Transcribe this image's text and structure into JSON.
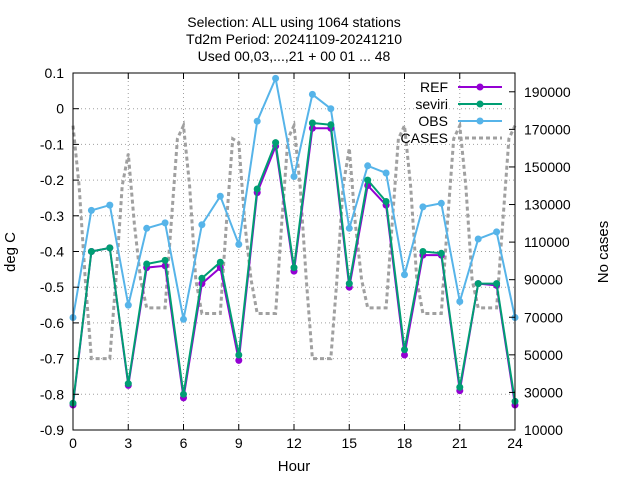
{
  "chart_data": {
    "type": "line",
    "title_lines": [
      "Selection: ALL using  1064 stations",
      "Td2m   Period: 20241109-20241210",
      "Used 00,03,...,21 + 00 01 ... 48"
    ],
    "xlabel": "Hour",
    "ylabel": "deg C",
    "y2label": "No cases",
    "xlim": [
      0,
      24
    ],
    "ylim": [
      -0.9,
      0.1
    ],
    "y2lim": [
      10000,
      200000
    ],
    "x_ticks": [
      0,
      3,
      6,
      9,
      12,
      15,
      18,
      21,
      24
    ],
    "x_tick_labels": [
      "0",
      "3",
      "6",
      "9",
      "12",
      "15",
      "18",
      "21",
      "24"
    ],
    "y_ticks": [
      0.1,
      0,
      -0.1,
      -0.2,
      -0.3,
      -0.4,
      -0.5,
      -0.6,
      -0.7,
      -0.8,
      -0.9
    ],
    "y_tick_labels": [
      "0.1",
      "0",
      "-0.1",
      "-0.2",
      "-0.3",
      "-0.4",
      "-0.5",
      "-0.6",
      "-0.7",
      "-0.8",
      "-0.9"
    ],
    "y2_ticks": [
      190000,
      170000,
      150000,
      130000,
      110000,
      90000,
      70000,
      50000,
      30000,
      10000
    ],
    "y2_tick_labels": [
      "190000",
      "170000",
      "150000",
      "130000",
      "110000",
      "90000",
      "70000",
      "50000",
      "30000",
      "10000"
    ],
    "grid": true,
    "legend_position": "top-right",
    "x": [
      0,
      1,
      2,
      3,
      4,
      5,
      6,
      7,
      8,
      9,
      10,
      11,
      12,
      13,
      14,
      15,
      16,
      17,
      18,
      19,
      20,
      21,
      22,
      23,
      24
    ],
    "series": [
      {
        "name": "REF",
        "color": "#9400d3",
        "marker": "circle",
        "axis": "y1",
        "values": [
          -0.83,
          -0.4,
          -0.39,
          -0.775,
          -0.445,
          -0.44,
          -0.81,
          -0.49,
          -0.445,
          -0.705,
          -0.235,
          -0.105,
          -0.455,
          -0.055,
          -0.055,
          -0.5,
          -0.215,
          -0.27,
          -0.69,
          -0.41,
          -0.41,
          -0.79,
          -0.49,
          -0.495,
          -0.83
        ]
      },
      {
        "name": "seviri",
        "color": "#009e73",
        "marker": "circle",
        "axis": "y1",
        "values": [
          -0.825,
          -0.4,
          -0.39,
          -0.77,
          -0.435,
          -0.425,
          -0.8,
          -0.475,
          -0.43,
          -0.69,
          -0.225,
          -0.095,
          -0.445,
          -0.04,
          -0.045,
          -0.49,
          -0.2,
          -0.26,
          -0.675,
          -0.4,
          -0.405,
          -0.78,
          -0.49,
          -0.49,
          -0.82
        ]
      },
      {
        "name": "OBS",
        "color": "#56b4e9",
        "marker": "circle",
        "axis": "y1",
        "values": [
          -0.585,
          -0.285,
          -0.27,
          -0.55,
          -0.335,
          -0.32,
          -0.59,
          -0.325,
          -0.245,
          -0.38,
          -0.035,
          0.085,
          -0.19,
          0.04,
          0.0,
          -0.335,
          -0.16,
          -0.18,
          -0.465,
          -0.275,
          -0.265,
          -0.54,
          -0.365,
          -0.345,
          -0.585
        ]
      },
      {
        "name": "CASES",
        "color": "#a0a0a0",
        "marker": "none",
        "dash": true,
        "axis": "y2",
        "x": [
          0,
          0.33,
          0.67,
          1,
          1.33,
          1.67,
          2,
          2.33,
          2.67,
          3,
          3.33,
          3.67,
          4,
          4.33,
          4.67,
          5,
          5.33,
          5.67,
          6,
          6.33,
          6.67,
          7,
          7.33,
          7.67,
          8,
          8.33,
          8.67,
          9,
          9.33,
          9.67,
          10,
          10.33,
          10.67,
          11,
          11.33,
          11.67,
          12,
          12.33,
          12.67,
          13,
          13.33,
          13.67,
          14,
          14.33,
          14.67,
          15,
          15.33,
          15.67,
          16,
          16.33,
          16.67,
          17,
          17.33,
          17.67,
          18,
          18.33,
          18.67,
          19,
          19.33,
          19.67,
          20,
          20.33,
          20.67,
          21,
          21.33,
          21.67,
          22,
          22.33,
          22.67,
          23,
          23.33,
          23.67,
          24
        ],
        "values": [
          172000,
          140000,
          90000,
          48000,
          48000,
          48000,
          48000,
          90000,
          140000,
          157000,
          120000,
          90000,
          75000,
          75000,
          75000,
          75000,
          120000,
          165000,
          172000,
          140000,
          90000,
          72000,
          72000,
          72000,
          72000,
          120000,
          165000,
          163000,
          120000,
          90000,
          72000,
          72000,
          72000,
          72000,
          120000,
          165000,
          172000,
          140000,
          90000,
          48000,
          48000,
          48000,
          48000,
          90000,
          140000,
          160000,
          120000,
          90000,
          75000,
          75000,
          75000,
          75000,
          120000,
          165000,
          172000,
          140000,
          90000,
          72000,
          72000,
          72000,
          72000,
          120000,
          165000,
          172000,
          140000,
          90000,
          75000,
          75000,
          75000,
          75000,
          120000,
          165000,
          172000
        ]
      }
    ]
  }
}
